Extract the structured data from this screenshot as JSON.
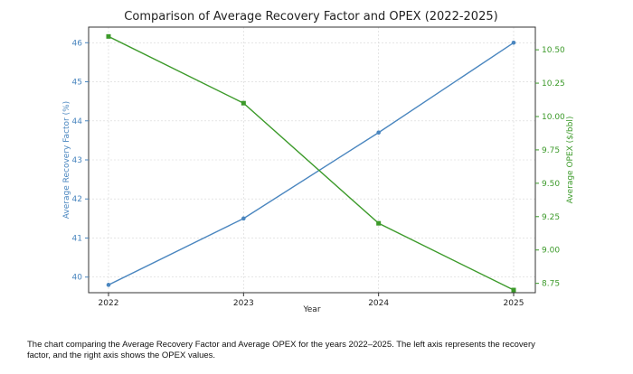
{
  "chart_data": {
    "type": "line",
    "title": "Comparison of Average Recovery Factor and OPEX (2022-2025)",
    "xlabel": "Year",
    "x": [
      2022,
      2023,
      2024,
      2025
    ],
    "x_tick_labels": [
      "2022",
      "2023",
      "2024",
      "2025"
    ],
    "y_left": {
      "label": "Average Recovery Factor (%)",
      "ylim": [
        39.6,
        46.4
      ],
      "ticks": [
        40,
        41,
        42,
        43,
        44,
        45,
        46
      ],
      "color": "#4a86bf"
    },
    "y_right": {
      "label": "Average OPEX ($/bbl)",
      "ylim": [
        8.68,
        10.67
      ],
      "ticks": [
        "8.75",
        "9.00",
        "9.25",
        "9.50",
        "9.75",
        "10.00",
        "10.25",
        "10.50"
      ],
      "color": "#3c9a2a"
    },
    "series": [
      {
        "axis": "left",
        "color": "#4a86bf",
        "values": [
          39.8,
          41.5,
          43.7,
          46.0
        ]
      },
      {
        "axis": "right",
        "color": "#3c9a2a",
        "values": [
          10.6,
          10.1,
          9.2,
          8.7
        ]
      }
    ],
    "grid": true
  },
  "caption": {
    "line1": "The chart comparing the Average Recovery Factor and Average OPEX for the years 2022–2025. The left axis represents the recovery",
    "line2": "factor, and the right axis shows the OPEX values."
  }
}
